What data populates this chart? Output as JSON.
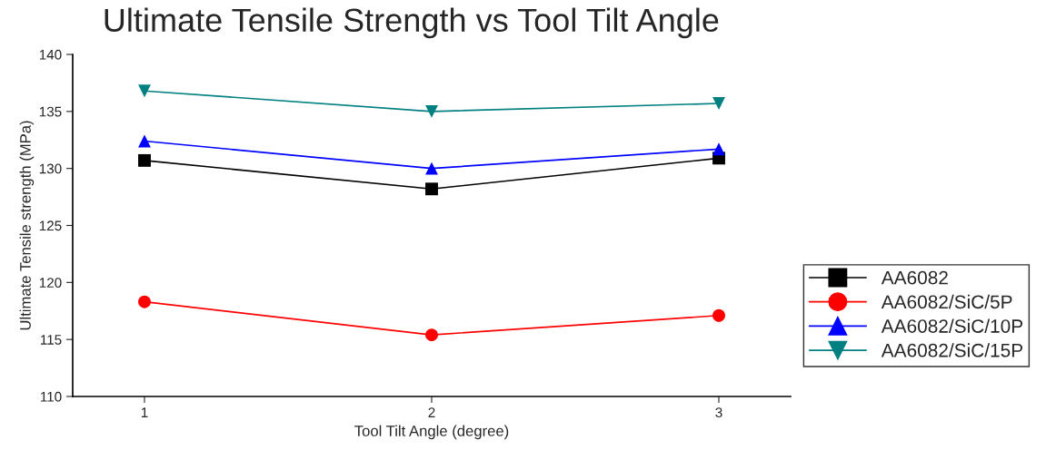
{
  "chart_data": {
    "type": "line",
    "title": "Ultimate Tensile Strength vs Tool Tilt Angle",
    "xlabel": "Tool Tilt Angle (degree)",
    "ylabel": "Ultimate Tensile strength (MPa)",
    "x": [
      1,
      2,
      3
    ],
    "series": [
      {
        "name": "AA6082",
        "color": "#000000",
        "marker": "square",
        "values": [
          130.7,
          128.2,
          130.9
        ]
      },
      {
        "name": "AA6082/SiC/5P",
        "color": "#ff0000",
        "marker": "circle",
        "values": [
          118.3,
          115.4,
          117.1
        ]
      },
      {
        "name": "AA6082/SiC/10P",
        "color": "#0000ff",
        "marker": "triangle",
        "values": [
          132.4,
          130.0,
          131.7
        ]
      },
      {
        "name": "AA6082/SiC/15P",
        "color": "#008080",
        "marker": "triangle_down",
        "values": [
          136.8,
          135.0,
          135.7
        ]
      }
    ],
    "xlim": [
      0.75,
      3.25
    ],
    "xticks": [
      1,
      2,
      3
    ],
    "ylim": [
      110,
      140
    ],
    "yticks": [
      110,
      115,
      120,
      125,
      130,
      135,
      140
    ],
    "grid": false,
    "legend": "right",
    "line_style": "solid"
  }
}
